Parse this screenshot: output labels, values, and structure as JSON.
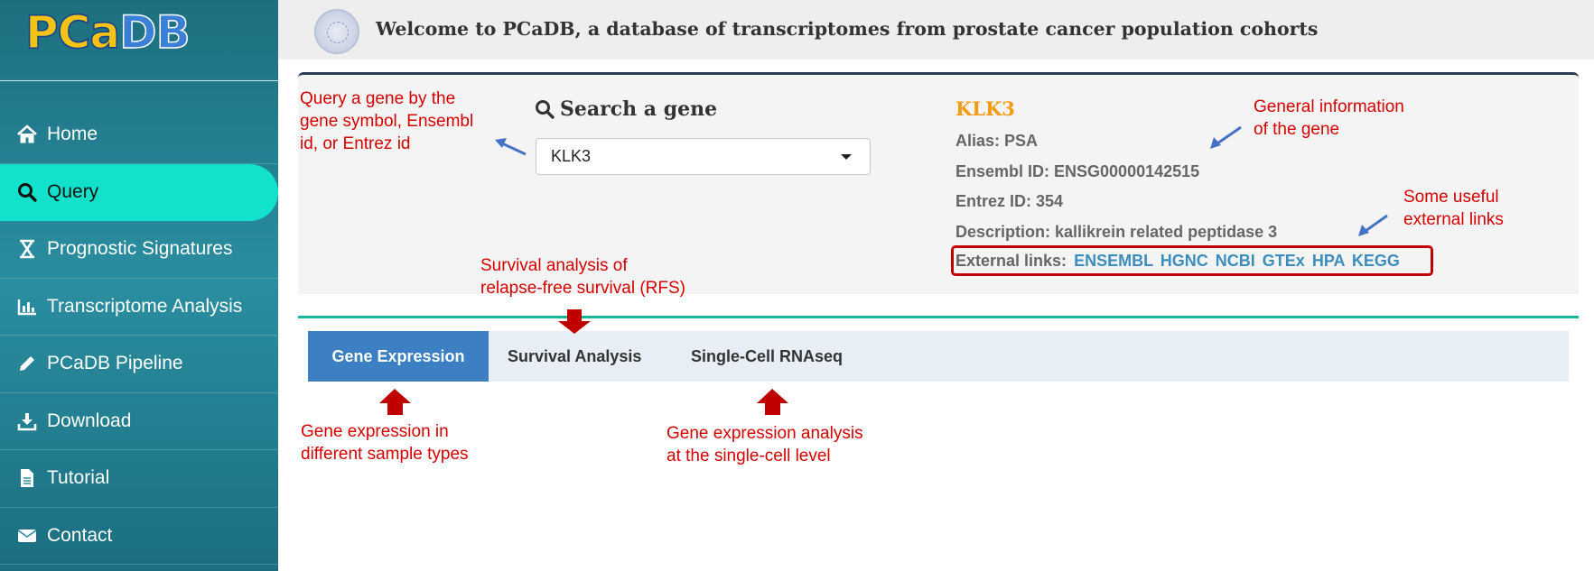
{
  "logo": {
    "part1": "PCa",
    "part2": "DB"
  },
  "header": {
    "title": "Welcome to PCaDB, a database of transcriptomes from prostate cancer population cohorts"
  },
  "sidebar": {
    "items": [
      {
        "label": "Home",
        "icon": "home-icon"
      },
      {
        "label": "Query",
        "icon": "search-icon",
        "active": true
      },
      {
        "label": "Prognostic Signatures",
        "icon": "hourglass-icon"
      },
      {
        "label": "Transcriptome Analysis",
        "icon": "bar-chart-icon"
      },
      {
        "label": "PCaDB Pipeline",
        "icon": "pencil-icon"
      },
      {
        "label": "Download",
        "icon": "download-icon"
      },
      {
        "label": "Tutorial",
        "icon": "file-icon"
      },
      {
        "label": "Contact",
        "icon": "envelope-icon"
      }
    ]
  },
  "search": {
    "title": "Search a gene",
    "value": "KLK3"
  },
  "gene": {
    "symbol": "KLK3",
    "alias": "Alias: PSA",
    "ensembl": "Ensembl ID: ENSG00000142515",
    "entrez": "Entrez ID: 354",
    "description": "Description: kallikrein related peptidase 3",
    "external_label": "External links:",
    "links": [
      "ENSEMBL",
      "HGNC",
      "NCBI",
      "GTEx",
      "HPA",
      "KEGG"
    ]
  },
  "tabs": [
    {
      "label": "Gene Expression",
      "active": true
    },
    {
      "label": "Survival Analysis"
    },
    {
      "label": "Single-Cell RNAseq"
    }
  ],
  "annotations": {
    "query": [
      "Query a gene by the",
      "gene symbol, Ensembl",
      "id, or Entrez id"
    ],
    "general": [
      "General information",
      "of the gene"
    ],
    "external": [
      "Some useful",
      "external links"
    ],
    "survival": [
      "Survival analysis of",
      "relapse-free survival (RFS)"
    ],
    "expression": [
      "Gene expression in",
      "different sample types"
    ],
    "singlecell": [
      "Gene expression analysis",
      "at the single-cell level"
    ]
  },
  "colors": {
    "accent": "#12e2cc",
    "tab_active": "#3c7fc3",
    "annotation": "#d40000",
    "gene_symbol": "#f39c12",
    "link": "#3c8dbc"
  }
}
